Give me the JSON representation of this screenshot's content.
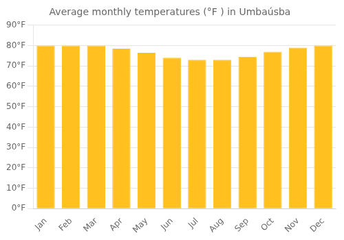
{
  "chart_data": {
    "type": "bar",
    "title": "Average monthly temperatures (°F ) in Umbaúsba",
    "categories": [
      "Jan",
      "Feb",
      "Mar",
      "Apr",
      "May",
      "Jun",
      "Jul",
      "Aug",
      "Sep",
      "Oct",
      "Nov",
      "Dec"
    ],
    "values": [
      80,
      80,
      80,
      78.5,
      76.5,
      74,
      73,
      73,
      74.5,
      77,
      79,
      80
    ],
    "color": "#FFC020",
    "ylim": [
      0,
      90
    ],
    "yticks": [
      {
        "value": 0,
        "label": "0°F"
      },
      {
        "value": 10,
        "label": "10°F"
      },
      {
        "value": 20,
        "label": "20°F"
      },
      {
        "value": 30,
        "label": "30°F"
      },
      {
        "value": 40,
        "label": "40°F"
      },
      {
        "value": 50,
        "label": "50°F"
      },
      {
        "value": 60,
        "label": "60°F"
      },
      {
        "value": 70,
        "label": "70°F"
      },
      {
        "value": 80,
        "label": "80°F"
      },
      {
        "value": 90,
        "label": "90°F"
      }
    ],
    "grid": true
  }
}
